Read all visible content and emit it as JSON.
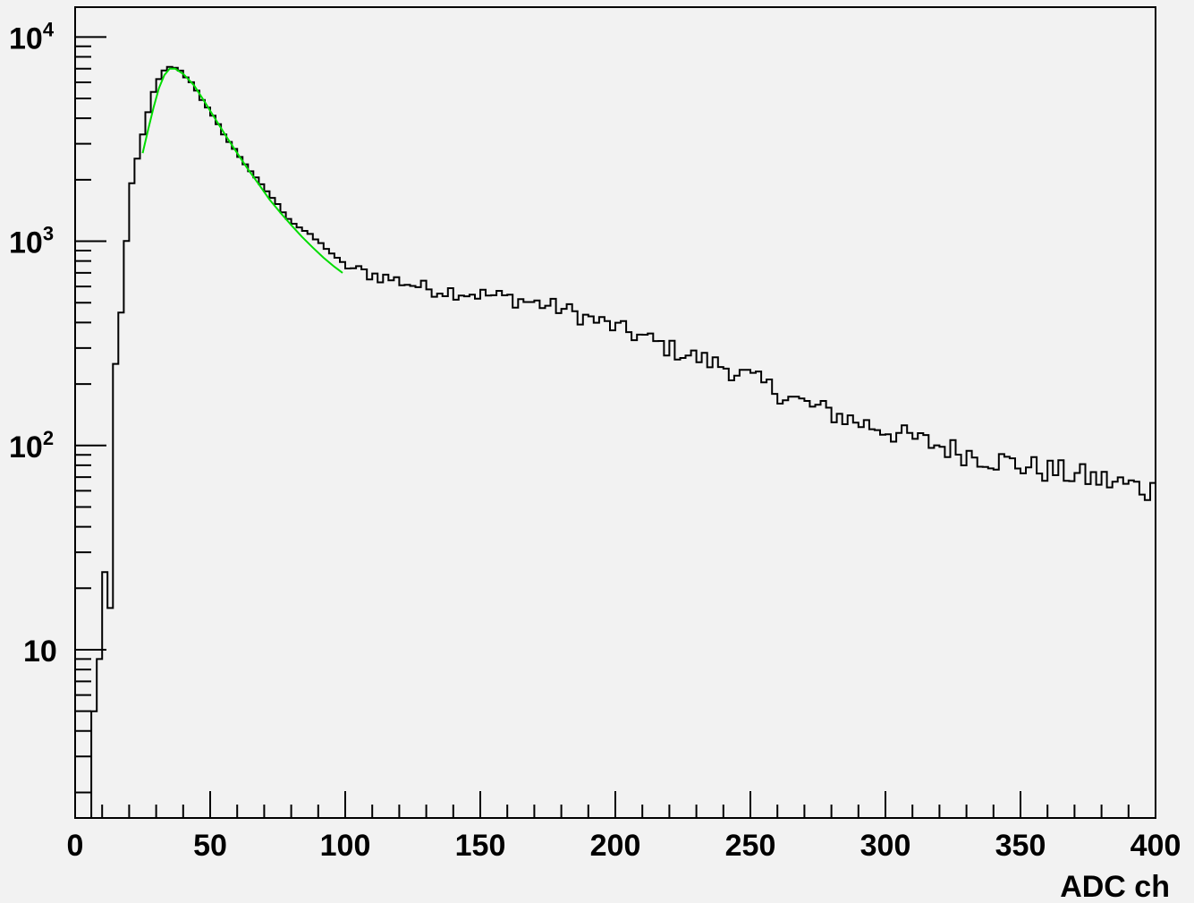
{
  "chart_data": {
    "type": "histogram",
    "title": "",
    "xlabel": "ADC ch",
    "ylabel": "",
    "xlim": [
      0,
      400
    ],
    "ylim": [
      1.5,
      14000
    ],
    "y_scale": "log",
    "grid": false,
    "bin_width": 2,
    "x_ticks": [
      {
        "value": 0,
        "label": "0"
      },
      {
        "value": 50,
        "label": "50"
      },
      {
        "value": 100,
        "label": "100"
      },
      {
        "value": 150,
        "label": "150"
      },
      {
        "value": 200,
        "label": "200"
      },
      {
        "value": 250,
        "label": "250"
      },
      {
        "value": 300,
        "label": "300"
      },
      {
        "value": 350,
        "label": "350"
      },
      {
        "value": 400,
        "label": "400"
      }
    ],
    "y_ticks": [
      {
        "value": 10,
        "base": "10",
        "exp": ""
      },
      {
        "value": 100,
        "base": "10",
        "exp": "2"
      },
      {
        "value": 1000,
        "base": "10",
        "exp": "3"
      },
      {
        "value": 10000,
        "base": "10",
        "exp": "4"
      }
    ],
    "series": [
      {
        "role": "histogram",
        "color": "#000000",
        "anchors": [
          [
            0,
            3
          ],
          [
            2,
            0
          ],
          [
            6,
            0
          ],
          [
            7,
            5
          ],
          [
            8,
            0
          ],
          [
            9,
            9
          ],
          [
            10,
            11
          ],
          [
            11,
            24
          ],
          [
            13,
            16
          ],
          [
            14,
            220
          ],
          [
            15,
            250
          ],
          [
            16,
            300
          ],
          [
            17,
            450
          ],
          [
            18,
            650
          ],
          [
            19,
            1000
          ],
          [
            20,
            1350
          ],
          [
            21,
            1900
          ],
          [
            22,
            2200
          ],
          [
            24,
            2900
          ],
          [
            26,
            3800
          ],
          [
            28,
            4900
          ],
          [
            30,
            5800
          ],
          [
            32,
            6600
          ],
          [
            34,
            7000
          ],
          [
            36,
            7200
          ],
          [
            38,
            7000
          ],
          [
            40,
            6600
          ],
          [
            44,
            5800
          ],
          [
            48,
            4700
          ],
          [
            52,
            3900
          ],
          [
            56,
            3200
          ],
          [
            60,
            2700
          ],
          [
            64,
            2300
          ],
          [
            68,
            1950
          ],
          [
            72,
            1700
          ],
          [
            76,
            1450
          ],
          [
            80,
            1250
          ],
          [
            86,
            1100
          ],
          [
            92,
            950
          ],
          [
            98,
            800
          ],
          [
            104,
            720
          ],
          [
            110,
            690
          ],
          [
            120,
            640
          ],
          [
            130,
            590
          ],
          [
            140,
            570
          ],
          [
            150,
            550
          ],
          [
            160,
            530
          ],
          [
            170,
            500
          ],
          [
            180,
            470
          ],
          [
            190,
            420
          ],
          [
            200,
            380
          ],
          [
            210,
            340
          ],
          [
            220,
            300
          ],
          [
            230,
            270
          ],
          [
            240,
            245
          ],
          [
            250,
            215
          ],
          [
            260,
            185
          ],
          [
            270,
            160
          ],
          [
            280,
            145
          ],
          [
            290,
            130
          ],
          [
            300,
            120
          ],
          [
            310,
            108
          ],
          [
            320,
            100
          ],
          [
            330,
            92
          ],
          [
            340,
            86
          ],
          [
            350,
            80
          ],
          [
            360,
            76
          ],
          [
            370,
            72
          ],
          [
            380,
            68
          ],
          [
            390,
            64
          ],
          [
            400,
            60
          ]
        ],
        "noise": 0.08
      },
      {
        "role": "fit",
        "color": "#00dd00",
        "x_range": [
          25,
          99
        ],
        "points": [
          [
            25,
            2700
          ],
          [
            27,
            3500
          ],
          [
            29,
            4500
          ],
          [
            31,
            5600
          ],
          [
            33,
            6500
          ],
          [
            35,
            7000
          ],
          [
            37,
            7000
          ],
          [
            40,
            6600
          ],
          [
            44,
            5800
          ],
          [
            48,
            4800
          ],
          [
            52,
            3950
          ],
          [
            56,
            3250
          ],
          [
            60,
            2700
          ],
          [
            64,
            2250
          ],
          [
            68,
            1900
          ],
          [
            72,
            1600
          ],
          [
            76,
            1380
          ],
          [
            80,
            1200
          ],
          [
            84,
            1050
          ],
          [
            88,
            930
          ],
          [
            92,
            830
          ],
          [
            96,
            750
          ],
          [
            99,
            700
          ]
        ]
      }
    ]
  }
}
